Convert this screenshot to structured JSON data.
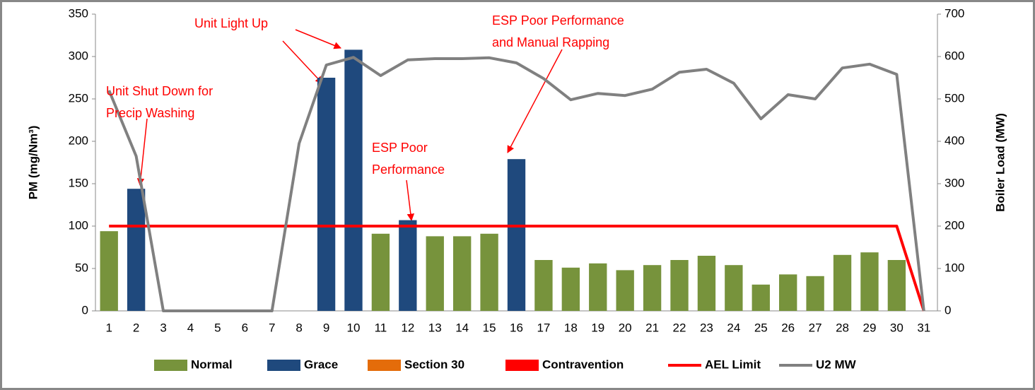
{
  "chart_data": {
    "type": "bar",
    "ylabel": "PM (mg/Nm³)",
    "y2label": "Boiler Load (MW)",
    "categories": [
      "1",
      "2",
      "3",
      "4",
      "5",
      "6",
      "7",
      "8",
      "9",
      "10",
      "11",
      "12",
      "13",
      "14",
      "15",
      "16",
      "17",
      "18",
      "19",
      "20",
      "21",
      "22",
      "23",
      "24",
      "25",
      "26",
      "27",
      "28",
      "29",
      "30",
      "31"
    ],
    "ylim": [
      0,
      350
    ],
    "yticks": [
      0,
      50,
      100,
      150,
      200,
      250,
      300,
      350
    ],
    "y2lim": [
      0,
      700
    ],
    "y2ticks": [
      0,
      100,
      200,
      300,
      400,
      500,
      600,
      700
    ],
    "grid": false,
    "legend": "bottom",
    "series": [
      {
        "name": "Normal",
        "type": "bar",
        "color": "#77933c",
        "values": [
          94,
          null,
          null,
          null,
          null,
          null,
          null,
          null,
          null,
          null,
          91,
          null,
          88,
          88,
          91,
          null,
          60,
          51,
          56,
          48,
          54,
          60,
          65,
          54,
          31,
          43,
          41,
          66,
          69,
          60,
          null
        ]
      },
      {
        "name": "Grace",
        "type": "bar",
        "color": "#1f497d",
        "values": [
          null,
          144,
          null,
          null,
          null,
          null,
          null,
          null,
          275,
          308,
          null,
          107,
          null,
          null,
          null,
          179,
          null,
          null,
          null,
          null,
          null,
          null,
          null,
          null,
          null,
          null,
          null,
          null,
          null,
          null,
          null
        ]
      },
      {
        "name": "Section 30",
        "type": "bar",
        "color": "#e46c0a",
        "values": [
          null,
          null,
          null,
          null,
          null,
          null,
          null,
          null,
          null,
          null,
          null,
          null,
          null,
          null,
          null,
          null,
          null,
          null,
          null,
          null,
          null,
          null,
          null,
          null,
          null,
          null,
          null,
          null,
          null,
          null,
          null
        ]
      },
      {
        "name": "Contravention",
        "type": "bar",
        "color": "#ff0000",
        "values": [
          null,
          null,
          null,
          null,
          null,
          null,
          null,
          null,
          null,
          null,
          null,
          null,
          null,
          null,
          null,
          null,
          null,
          null,
          null,
          null,
          null,
          null,
          null,
          null,
          null,
          null,
          null,
          null,
          null,
          null,
          null
        ]
      },
      {
        "name": "AEL Limit",
        "type": "line",
        "color": "#ff0000",
        "values": [
          100,
          100,
          100,
          100,
          100,
          100,
          100,
          100,
          100,
          100,
          100,
          100,
          100,
          100,
          100,
          100,
          100,
          100,
          100,
          100,
          100,
          100,
          100,
          100,
          100,
          100,
          100,
          100,
          100,
          100,
          0
        ]
      },
      {
        "name": "U2 MW",
        "type": "line",
        "axis": "y2",
        "color": "#808080",
        "values": [
          520,
          365,
          0,
          0,
          0,
          0,
          0,
          395,
          580,
          598,
          555,
          592,
          595,
          595,
          597,
          585,
          548,
          498,
          513,
          508,
          523,
          563,
          570,
          537,
          453,
          510,
          500,
          573,
          582,
          558,
          0
        ]
      }
    ],
    "annotations": [
      {
        "text": [
          "Unit Shut Down for",
          "Precip Washing"
        ]
      },
      {
        "text": [
          "Unit Light Up"
        ]
      },
      {
        "text": [
          "ESP Poor",
          "Performance"
        ]
      },
      {
        "text": [
          "ESP Poor Performance",
          "and Manual Rapping"
        ]
      }
    ]
  }
}
